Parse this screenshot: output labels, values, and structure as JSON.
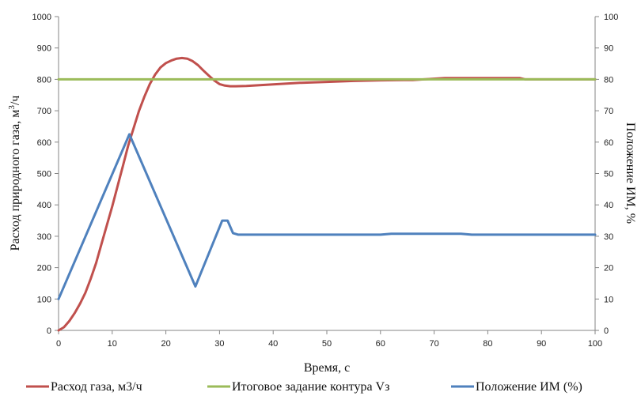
{
  "chart_data": {
    "type": "line",
    "xlabel": "Время, с",
    "ylabel": "Расход природного газа, м³/ч",
    "ylabel_parts": {
      "pre": "Расход природного газа, м",
      "sup": "3",
      "post": "/ч"
    },
    "y2label": "Положение ИМ, %",
    "xlim": [
      0,
      100
    ],
    "ylim": [
      0,
      1000
    ],
    "y2lim": [
      0,
      100
    ],
    "x_ticks": [
      0,
      10,
      20,
      30,
      40,
      50,
      60,
      70,
      80,
      90,
      100
    ],
    "y_ticks": [
      0,
      100,
      200,
      300,
      400,
      500,
      600,
      700,
      800,
      900,
      1000
    ],
    "y2_ticks": [
      0,
      10,
      20,
      30,
      40,
      50,
      60,
      70,
      80,
      90,
      100
    ],
    "grid": false,
    "legend_position": "bottom",
    "series": [
      {
        "name": "Расход газа, м3/ч",
        "axis": "left",
        "color": "#c0504d",
        "x": [
          0,
          1,
          2,
          3,
          4,
          5,
          6,
          7,
          8,
          9,
          10,
          11,
          12,
          13,
          14,
          15,
          16,
          17,
          18,
          19,
          20,
          21,
          22,
          23,
          24,
          25,
          26,
          27,
          28,
          29,
          30,
          31,
          32,
          33,
          35,
          40,
          45,
          50,
          55,
          60,
          65,
          66,
          72,
          80,
          86,
          87,
          100
        ],
        "y": [
          0,
          10,
          30,
          55,
          85,
          120,
          165,
          215,
          275,
          335,
          395,
          460,
          525,
          590,
          645,
          700,
          745,
          785,
          815,
          838,
          852,
          860,
          866,
          868,
          866,
          858,
          845,
          828,
          812,
          797,
          785,
          780,
          778,
          778,
          779,
          784,
          789,
          792,
          795,
          797,
          798,
          798,
          804,
          804,
          804,
          800,
          800
        ]
      },
      {
        "name": "Итоговое задание контура Vз",
        "axis": "left",
        "color": "#9bbb59",
        "x": [
          0,
          100
        ],
        "y": [
          800,
          800
        ]
      },
      {
        "name": "Положение ИМ (%)",
        "axis": "right",
        "color": "#4f81bd",
        "x": [
          0,
          13.2,
          25.5,
          30.5,
          31.5,
          32.5,
          33.5,
          60,
          62,
          75,
          77,
          100
        ],
        "y": [
          10,
          62.5,
          14,
          35,
          35,
          31,
          30.5,
          30.5,
          30.8,
          30.8,
          30.5,
          30.5
        ]
      }
    ]
  }
}
